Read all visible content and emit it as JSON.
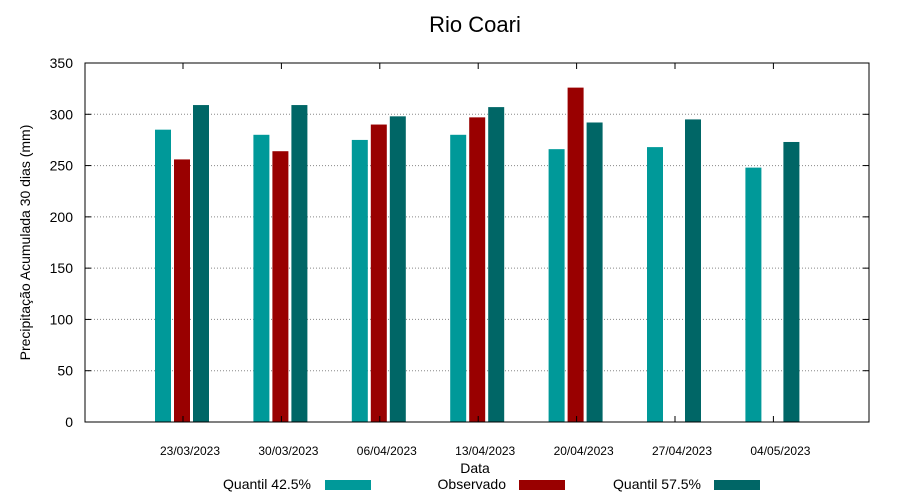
{
  "chart_data": {
    "type": "bar",
    "title": "Rio Coari",
    "xlabel": "Data",
    "ylabel": "Precipitação Acumulada 30 dias (mm)",
    "ylim": [
      0,
      350
    ],
    "yticks": [
      0,
      50,
      100,
      150,
      200,
      250,
      300,
      350
    ],
    "grid": true,
    "legend_position": "bottom",
    "categories": [
      "23/03/2023",
      "30/03/2023",
      "06/04/2023",
      "13/04/2023",
      "20/04/2023",
      "27/04/2023",
      "04/05/2023"
    ],
    "series": [
      {
        "name": "Quantil 42.5%",
        "color": "#009999",
        "values": [
          285,
          280,
          275,
          280,
          266,
          268,
          248
        ]
      },
      {
        "name": "Observado",
        "color": "#990000",
        "values": [
          256,
          264,
          290,
          297,
          326,
          null,
          null
        ]
      },
      {
        "name": "Quantil 57.5%",
        "color": "#006666",
        "values": [
          309,
          309,
          298,
          307,
          292,
          295,
          273
        ]
      }
    ]
  }
}
